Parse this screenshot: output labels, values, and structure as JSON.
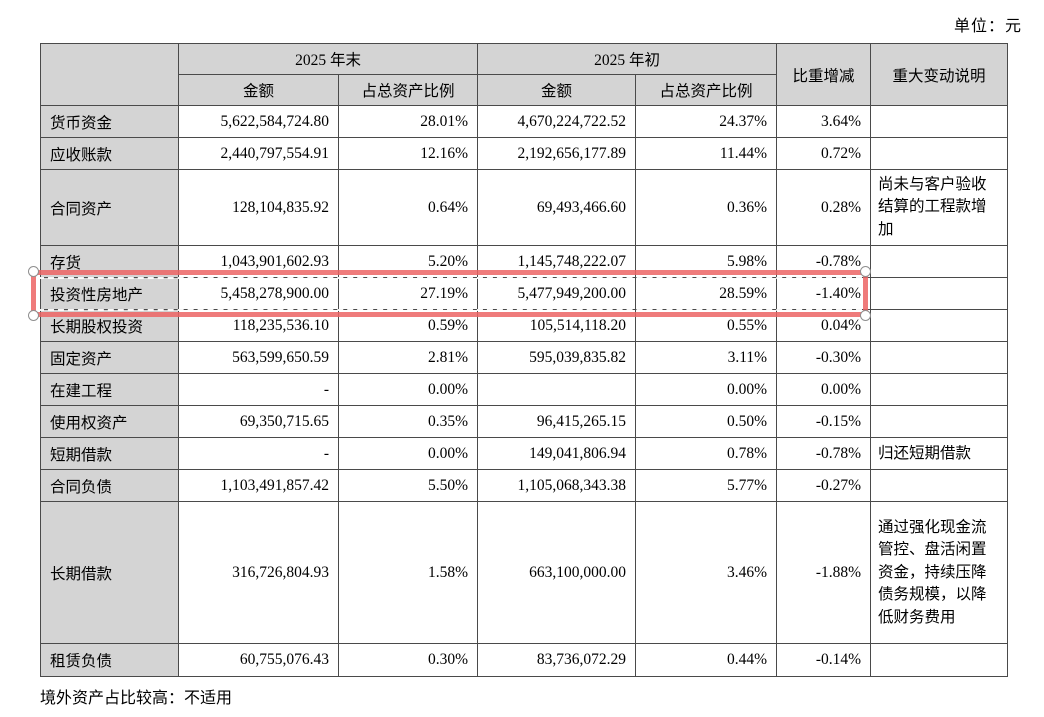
{
  "page": {
    "unit_label": "单位：元",
    "footer_note": "境外资产占比较高：不适用"
  },
  "table": {
    "header_bg_color": "#d4d4d4",
    "border_color": "#4a4a4a",
    "header": {
      "period_end": "2025 年末",
      "period_start": "2025 年初",
      "amount": "金额",
      "ratio": "占总资产比例",
      "change": "比重增减",
      "explanation": "重大变动说明"
    },
    "rows": [
      {
        "item": "货币资金",
        "end_amount": "5,622,584,724.80",
        "end_ratio": "28.01%",
        "start_amount": "4,670,224,722.52",
        "start_ratio": "24.37%",
        "change": "3.64%",
        "note": ""
      },
      {
        "item": "应收账款",
        "end_amount": "2,440,797,554.91",
        "end_ratio": "12.16%",
        "start_amount": "2,192,656,177.89",
        "start_ratio": "11.44%",
        "change": "0.72%",
        "note": ""
      },
      {
        "item": "合同资产",
        "end_amount": "128,104,835.92",
        "end_ratio": "0.64%",
        "start_amount": "69,493,466.60",
        "start_ratio": "0.36%",
        "change": "0.28%",
        "note": "尚未与客户验收结算的工程款增加"
      },
      {
        "item": "存货",
        "end_amount": "1,043,901,602.93",
        "end_ratio": "5.20%",
        "start_amount": "1,145,748,222.07",
        "start_ratio": "5.98%",
        "change": "-0.78%",
        "note": ""
      },
      {
        "item": "投资性房地产",
        "end_amount": "5,458,278,900.00",
        "end_ratio": "27.19%",
        "start_amount": "5,477,949,200.00",
        "start_ratio": "28.59%",
        "change": "-1.40%",
        "note": ""
      },
      {
        "item": "长期股权投资",
        "end_amount": "118,235,536.10",
        "end_ratio": "0.59%",
        "start_amount": "105,514,118.20",
        "start_ratio": "0.55%",
        "change": "0.04%",
        "note": ""
      },
      {
        "item": "固定资产",
        "end_amount": "563,599,650.59",
        "end_ratio": "2.81%",
        "start_amount": "595,039,835.82",
        "start_ratio": "3.11%",
        "change": "-0.30%",
        "note": ""
      },
      {
        "item": "在建工程",
        "end_amount": "-",
        "end_ratio": "0.00%",
        "start_amount": "",
        "start_ratio": "0.00%",
        "change": "0.00%",
        "note": ""
      },
      {
        "item": "使用权资产",
        "end_amount": "69,350,715.65",
        "end_ratio": "0.35%",
        "start_amount": "96,415,265.15",
        "start_ratio": "0.50%",
        "change": "-0.15%",
        "note": ""
      },
      {
        "item": "短期借款",
        "end_amount": "-",
        "end_ratio": "0.00%",
        "start_amount": "149,041,806.94",
        "start_ratio": "0.78%",
        "change": "-0.78%",
        "note": "归还短期借款"
      },
      {
        "item": "合同负债",
        "end_amount": "1,103,491,857.42",
        "end_ratio": "5.50%",
        "start_amount": "1,105,068,343.38",
        "start_ratio": "5.77%",
        "change": "-0.27%",
        "note": ""
      },
      {
        "item": "长期借款",
        "end_amount": "316,726,804.93",
        "end_ratio": "1.58%",
        "start_amount": "663,100,000.00",
        "start_ratio": "3.46%",
        "change": "-1.88%",
        "note": "通过强化现金流管控、盘活闲置资金，持续压降债务规模，以降低财务费用"
      },
      {
        "item": "租赁负债",
        "end_amount": "60,755,076.43",
        "end_ratio": "0.30%",
        "start_amount": "83,736,072.29",
        "start_ratio": "0.44%",
        "change": "-0.14%",
        "note": ""
      }
    ]
  },
  "annotation": {
    "type": "selection-box",
    "highlighted_item": "投资性房地产",
    "box_color": "#ec6464",
    "dash_color": "#ffffff",
    "handle_fill": "#ffffff",
    "handle_border": "#8f8f8f"
  }
}
